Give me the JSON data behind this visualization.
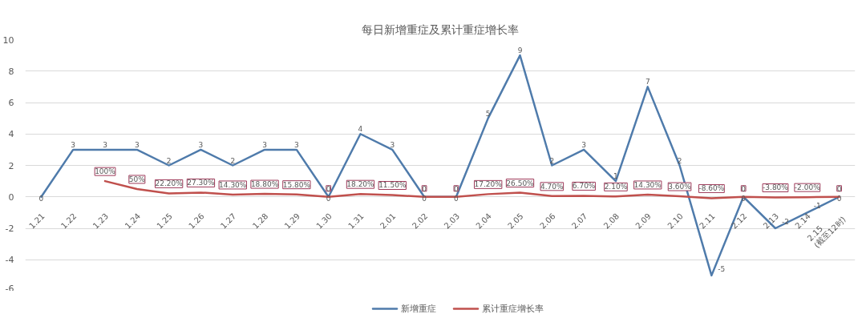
{
  "chart_data": {
    "type": "line",
    "title": "每日新增重症及累计重症增长率",
    "categories": [
      "1.21",
      "1.22",
      "1.23",
      "1.24",
      "1.25",
      "1.26",
      "1.27",
      "1.28",
      "1.29",
      "1.30",
      "1.31",
      "2.01",
      "2.02",
      "2.03",
      "2.04",
      "2.05",
      "2.06",
      "2.07",
      "2.08",
      "2.09",
      "2.10",
      "2.11",
      "2.12",
      "2.13",
      "2.14",
      "2.15\n(截至12时)"
    ],
    "series": [
      {
        "name": "新增重症",
        "color": "#4f7bab",
        "values": [
          0,
          3,
          3,
          3,
          2,
          3,
          2,
          3,
          3,
          0,
          4,
          3,
          0,
          0,
          5,
          9,
          2,
          3,
          1,
          7,
          2,
          -5,
          0,
          -2,
          -1,
          0
        ],
        "value_labels": [
          "0",
          "3",
          "3",
          "3",
          "2",
          "3",
          "2",
          "3",
          "3",
          "0",
          "4",
          "3",
          "0",
          "0",
          "5",
          "9",
          "2",
          "3",
          "1",
          "7",
          "2",
          "-5",
          "0",
          "-2",
          "-1",
          "0"
        ]
      },
      {
        "name": "累计重症增长率",
        "color": "#c0504d",
        "values": [
          null,
          null,
          1.0,
          0.5,
          0.222,
          0.273,
          0.143,
          0.188,
          0.158,
          0,
          0.182,
          0.115,
          0,
          0,
          0.172,
          0.265,
          0.047,
          0.067,
          0.021,
          0.143,
          0.036,
          -0.086,
          0,
          -0.038,
          -0.02,
          0
        ],
        "value_labels": [
          null,
          null,
          "100%",
          "50%",
          "22.20%",
          "27.30%",
          "14.30%",
          "18.80%",
          "15.80%",
          "0",
          "18.20%",
          "11.50%",
          "0",
          "0",
          "17.20%",
          "26.50%",
          "4.70%",
          "6.70%",
          "2.10%",
          "14.30%",
          "3.60%",
          "-8.60%",
          "0",
          "-3.80%",
          "-2.00%",
          "0"
        ]
      }
    ],
    "ylim": [
      -6,
      10
    ],
    "yticks": [
      -6,
      -4,
      -2,
      0,
      2,
      4,
      6,
      8,
      10
    ],
    "grid": "y",
    "legend": "bottom"
  }
}
